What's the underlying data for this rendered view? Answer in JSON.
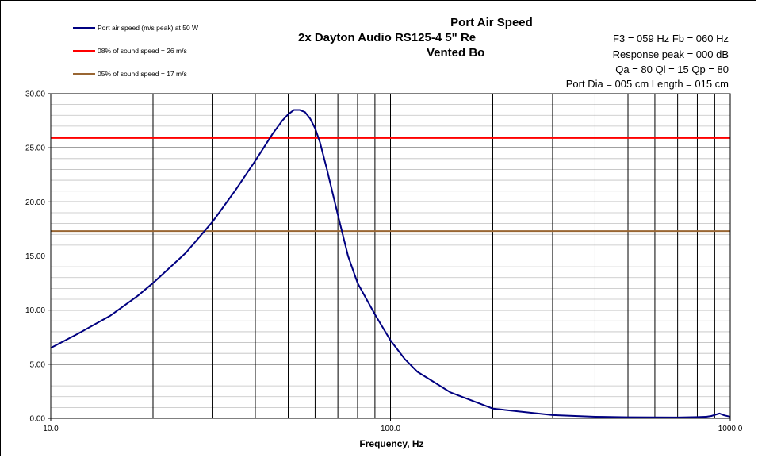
{
  "chart_data": {
    "type": "line",
    "title_lines": [
      "Port Air  Speed",
      "2x Dayton Audio RS125-4 5\" Re",
      "Vented Bo"
    ],
    "xlabel": "Frequency, Hz",
    "ylabel": "",
    "x_scale": "log",
    "xlim": [
      10,
      1000
    ],
    "ylim": [
      0,
      30
    ],
    "x_tick_labels": [
      "10.0",
      "100.0",
      "1000.0"
    ],
    "y_tick_labels": [
      "0.00",
      "5.00",
      "10.00",
      "15.00",
      "20.00",
      "25.00",
      "30.00"
    ],
    "grid": true,
    "legend_position": "top-left",
    "specs": [
      "F3 = 059  Hz  Fb = 060  Hz",
      "Response  peak = 000  dB",
      "Qa = 80  Ql = 15  Qp = 80",
      "Port Dia = 005  cm  Length = 015  cm"
    ],
    "series": [
      {
        "name": "Port air speed (m/s peak) at 50 W",
        "color": "#000080",
        "x": [
          10,
          12,
          15,
          18,
          20,
          25,
          30,
          35,
          40,
          45,
          48,
          50,
          52,
          54,
          56,
          58,
          60,
          62,
          65,
          70,
          75,
          80,
          90,
          100,
          110,
          120,
          150,
          200,
          300,
          400,
          500,
          700,
          800,
          850,
          880,
          900,
          930,
          960,
          1000
        ],
        "y": [
          6.5,
          7.8,
          9.5,
          11.3,
          12.5,
          15.3,
          18.2,
          21.1,
          23.8,
          26.3,
          27.5,
          28.1,
          28.5,
          28.5,
          28.3,
          27.7,
          26.8,
          25.5,
          23.0,
          18.8,
          15.0,
          12.5,
          9.6,
          7.2,
          5.5,
          4.3,
          2.4,
          0.9,
          0.3,
          0.15,
          0.1,
          0.08,
          0.12,
          0.15,
          0.22,
          0.32,
          0.45,
          0.28,
          0.15
        ]
      },
      {
        "name": "08% of sound speed = 26 m/s",
        "color": "#ff0000",
        "x": [
          10,
          1000
        ],
        "y": [
          25.9,
          25.9
        ]
      },
      {
        "name": "05% of sound speed = 17 m/s",
        "color": "#996633",
        "x": [
          10,
          1000
        ],
        "y": [
          17.3,
          17.3
        ]
      }
    ]
  }
}
